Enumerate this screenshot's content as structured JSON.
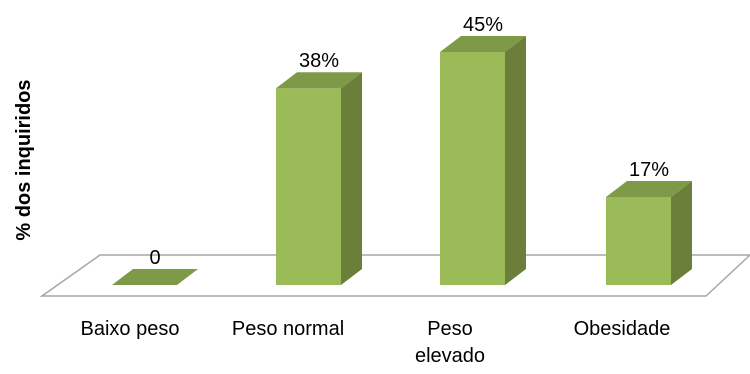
{
  "chart_data": {
    "type": "bar",
    "categories": [
      "Baixo peso",
      "Peso normal",
      "Peso elevado",
      "Obesidade"
    ],
    "category_lines": [
      [
        "Baixo peso"
      ],
      [
        "Peso normal"
      ],
      [
        "Peso",
        "elevado"
      ],
      [
        "Obesidade"
      ]
    ],
    "values": [
      0,
      38,
      45,
      17
    ],
    "data_labels": [
      "0",
      "38%",
      "45%",
      "17%"
    ],
    "ylabel": "% dos inquiridos",
    "ylim": [
      0,
      45
    ],
    "grid": false,
    "legend": "none",
    "colors": {
      "front": "#9bbb59",
      "side": "#6b7f3a",
      "top": "#7e9a48",
      "floor_stroke": "#a6a6a6"
    }
  }
}
